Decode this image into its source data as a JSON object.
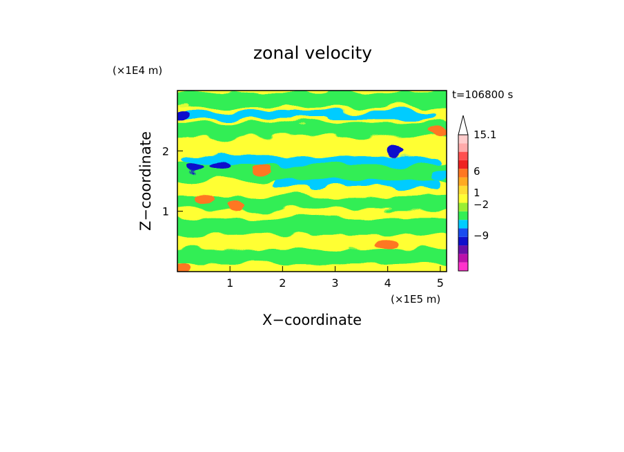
{
  "chart_data": {
    "type": "heatmap",
    "title": "zonal velocity",
    "xlabel": "X−coordinate",
    "ylabel": "Z−coordinate",
    "x_unit": "(×1E5 m)",
    "y_unit": "(×1E4 m)",
    "time_label": "t=106800 s",
    "x_ticks": [
      "1",
      "2",
      "3",
      "4",
      "5"
    ],
    "x_tick_values": [
      1,
      2,
      3,
      4,
      5
    ],
    "y_ticks": [
      "1",
      "2"
    ],
    "y_tick_values": [
      1,
      2
    ],
    "xlim": [
      0,
      5.12
    ],
    "ylim": [
      0,
      3.0
    ],
    "grid": false,
    "colorbar": {
      "levels_colors": [
        "#ff33cc",
        "#bb11aa",
        "#6a10a8",
        "#1010cc",
        "#1a4cf0",
        "#00ccff",
        "#33ee55",
        "#99ee33",
        "#ffff33",
        "#ffdd33",
        "#ffaa22",
        "#ff7722",
        "#ee2222",
        "#ff5050",
        "#ffaaaa",
        "#ffcccc"
      ],
      "labels": [
        "15.1",
        "6",
        "1",
        "−2",
        "−9"
      ],
      "label_values": [
        15.1,
        6,
        1,
        -2,
        -9
      ]
    },
    "features": [
      {
        "kind": "band",
        "z": 2.6,
        "x0": 0.1,
        "x1": 4.9,
        "value": -2
      },
      {
        "kind": "band",
        "z": 1.85,
        "x0": 0.1,
        "x1": 5.0,
        "value": -2
      },
      {
        "kind": "band",
        "z": 1.45,
        "x0": 1.8,
        "x1": 5.0,
        "value": -2
      },
      {
        "kind": "blob",
        "x": 0.35,
        "z": 1.7,
        "value": -9
      },
      {
        "kind": "blob",
        "x": 0.8,
        "z": 1.75,
        "value": -9
      },
      {
        "kind": "blob",
        "x": 4.15,
        "z": 2.0,
        "value": -9
      },
      {
        "kind": "blob",
        "x": 4.95,
        "z": 1.6,
        "value": -2
      },
      {
        "kind": "blob",
        "x": 0.1,
        "z": 2.6,
        "value": -9
      },
      {
        "kind": "blob",
        "x": 1.1,
        "z": 1.1,
        "value": 6
      },
      {
        "kind": "blob",
        "x": 0.55,
        "z": 1.2,
        "value": 6
      },
      {
        "kind": "blob",
        "x": 4.0,
        "z": 0.45,
        "value": 6
      },
      {
        "kind": "blob",
        "x": 0.1,
        "z": 0.05,
        "value": 6
      },
      {
        "kind": "blob",
        "x": 1.6,
        "z": 1.7,
        "value": 6
      },
      {
        "kind": "blob",
        "x": 4.9,
        "z": 2.3,
        "value": 6
      }
    ]
  }
}
